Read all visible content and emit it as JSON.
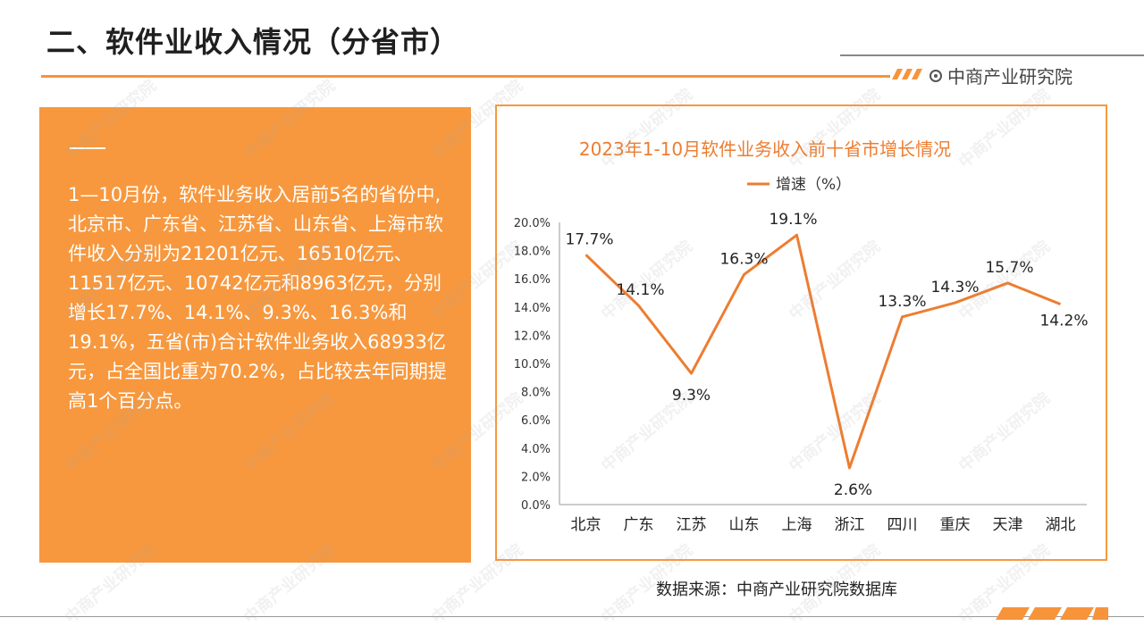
{
  "page": {
    "title": "二、软件业收入情况（分省市）",
    "brand": "中商产业研究院",
    "accent_color": "#f7943a",
    "icons": [
      "brand-circle-icon",
      "legend-line-icon"
    ]
  },
  "left_panel": {
    "body": "1—10月份，软件业务收入居前5名的省份中,北京市、广东省、江苏省、山东省、上海市软件收入分别为21201亿元、16510亿元、11517亿元、10742亿元和8963亿元，分别增长17.7%、14.1%、9.3%、16.3%和19.1%，五省(市)合计软件业务收入68933亿元，占全国比重为70.2%，占比较去年同期提高1个百分点。"
  },
  "source_note": "数据来源：中商产业研究院数据库",
  "watermark_text": "中商产业研究院",
  "chart_data": {
    "type": "line",
    "title": "2023年1-10月软件业务收入前十省市增长情况",
    "legend": "增速（%）",
    "legend_position": "top",
    "categories": [
      "北京",
      "广东",
      "江苏",
      "山东",
      "上海",
      "浙江",
      "四川",
      "重庆",
      "天津",
      "湖北"
    ],
    "series": [
      {
        "name": "增速（%）",
        "values": [
          17.7,
          14.1,
          9.3,
          16.3,
          19.1,
          2.6,
          13.3,
          14.3,
          15.7,
          14.2
        ],
        "labels": [
          "17.7%",
          "14.1%",
          "9.3%",
          "16.3%",
          "19.1%",
          "2.6%",
          "13.3%",
          "14.3%",
          "15.7%",
          "14.2%"
        ],
        "color": "#ed7d31"
      }
    ],
    "ylim": [
      0,
      20
    ],
    "yticks": [
      "0.0%",
      "2.0%",
      "4.0%",
      "6.0%",
      "8.0%",
      "10.0%",
      "12.0%",
      "14.0%",
      "16.0%",
      "18.0%",
      "20.0%"
    ],
    "title_color": "#ed7d31",
    "grid": false
  }
}
